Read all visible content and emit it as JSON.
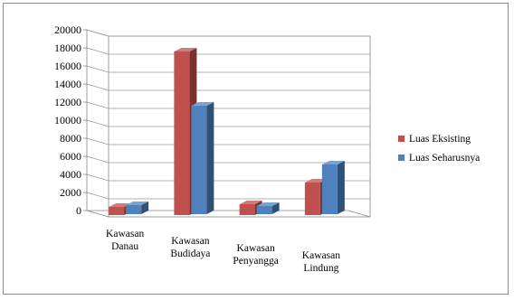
{
  "chart_data": {
    "type": "bar",
    "style": "3d-clustered-column",
    "categories": [
      [
        "Kawasan",
        "Danau"
      ],
      [
        "Kawasan",
        "Budidaya"
      ],
      [
        "Kawasan",
        "Penyangga"
      ],
      [
        "Kawasan",
        "Lindung"
      ]
    ],
    "series": [
      {
        "name": "Luas Eksisting",
        "color": "#c0504d",
        "values": [
          900,
          18100,
          1200,
          3600
        ]
      },
      {
        "name": "Luas Seharusnya",
        "color": "#4f81bd",
        "values": [
          1000,
          12000,
          900,
          5500
        ]
      }
    ],
    "y_ticks": [
      "0",
      "2000",
      "4000",
      "6000",
      "8000",
      "10000",
      "12000",
      "14000",
      "16000",
      "18000",
      "20000"
    ],
    "ylim": [
      0,
      20000
    ],
    "grid": true,
    "legend_position": "right"
  }
}
